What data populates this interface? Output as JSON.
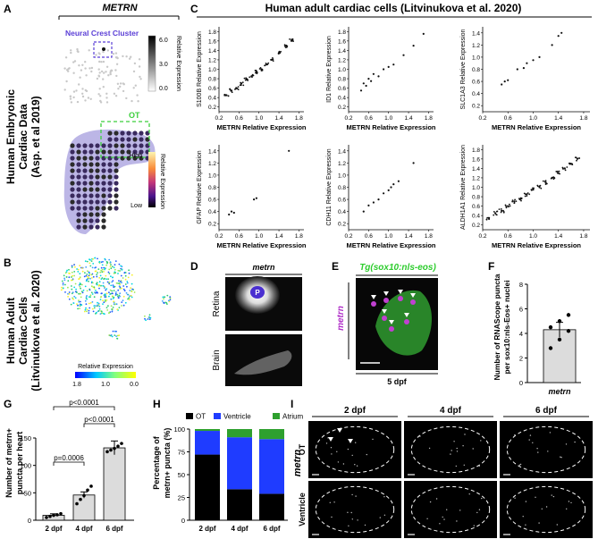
{
  "panel_labels": [
    "A",
    "B",
    "C",
    "D",
    "E",
    "F",
    "G",
    "H",
    "I"
  ],
  "A": {
    "gene": "METRN",
    "side_label_lines": [
      "Human Embryonic",
      "Cardiac Data",
      "(Asp. et al 2019)"
    ],
    "cluster_label": "Neural Crest Cluster",
    "colorbar1": {
      "ticks": [
        "6.0",
        "3.0",
        "0.0"
      ],
      "label": "Relative Expression"
    },
    "ot_label": "OT",
    "colorbar2": {
      "high": "High",
      "low": "Low",
      "label": "Relative Expression"
    },
    "colors": {
      "cluster_box": "#5b3fd6",
      "ot_box": "#3ccf3c"
    }
  },
  "B": {
    "side_label_lines": [
      "Human Adult",
      "Cardiac Cells",
      "(Litvinukova et al. 2020)"
    ],
    "legend_title": "Relative Expression",
    "legend_ticks": [
      "1.8",
      "1.0",
      "0.0"
    ]
  },
  "C": {
    "title": "Human adult cardiac cells (Litvinukova et al. 2020)",
    "xlabel": "METRN Relative Expression"
  },
  "chart_data": [
    {
      "type": "scatter",
      "ylabel": "S100B Relative Expression",
      "xticks": [
        "0.2",
        "0.6",
        "1.0",
        "1.4",
        "1.8"
      ],
      "yticks": [
        "0.2",
        "0.4",
        "0.6",
        "0.8",
        "1.0",
        "1.2",
        "1.4",
        "1.6",
        "1.8"
      ],
      "x": [
        0.35,
        0.45,
        0.55,
        0.65,
        0.75,
        0.85,
        0.95,
        1.05,
        1.15,
        1.25,
        1.4,
        1.55,
        1.65
      ],
      "y": [
        0.45,
        0.55,
        0.6,
        0.7,
        0.8,
        0.85,
        0.95,
        1.0,
        1.1,
        1.2,
        1.35,
        1.5,
        1.6
      ]
    },
    {
      "type": "scatter",
      "ylabel": "ID1 Relative Expression",
      "xticks": [
        "0.2",
        "0.6",
        "1.0",
        "1.4",
        "1.8"
      ],
      "yticks": [
        "0.2",
        "0.4",
        "0.6",
        "0.8",
        "1.0",
        "1.2",
        "1.4",
        "1.6",
        "1.8"
      ],
      "x": [
        0.45,
        0.5,
        0.55,
        0.6,
        0.65,
        0.7,
        0.8,
        0.9,
        1.0,
        1.1,
        1.3,
        1.5,
        1.7
      ],
      "y": [
        0.55,
        0.7,
        0.65,
        0.8,
        0.75,
        0.9,
        0.85,
        1.0,
        1.05,
        1.1,
        1.3,
        1.5,
        1.75
      ]
    },
    {
      "type": "scatter",
      "ylabel": "SLC1A3 Relative Expression",
      "xticks": [
        "0.2",
        "0.6",
        "1.0",
        "1.4",
        "1.8"
      ],
      "yticks": [
        "0.2",
        "0.4",
        "0.6",
        "0.8",
        "1.0",
        "1.2",
        "1.4"
      ],
      "x": [
        0.5,
        0.55,
        0.6,
        0.75,
        0.85,
        0.9,
        1.0,
        1.1,
        1.3,
        1.4,
        1.45
      ],
      "y": [
        0.55,
        0.6,
        0.62,
        0.8,
        0.82,
        0.9,
        0.95,
        1.0,
        1.2,
        1.35,
        1.4
      ]
    },
    {
      "type": "scatter",
      "ylabel": "GFAP Relative Expression",
      "xticks": [
        "0.2",
        "0.6",
        "1.0",
        "1.4",
        "1.8"
      ],
      "yticks": [
        "0.2",
        "0.4",
        "0.6",
        "0.8",
        "1.0",
        "1.2",
        "1.4"
      ],
      "x": [
        0.4,
        0.45,
        0.5,
        0.9,
        0.95,
        1.6
      ],
      "y": [
        0.35,
        0.4,
        0.38,
        0.6,
        0.62,
        1.4
      ]
    },
    {
      "type": "scatter",
      "ylabel": "CDH11 Relative Expression",
      "xticks": [
        "0.2",
        "0.6",
        "1.0",
        "1.4",
        "1.8"
      ],
      "yticks": [
        "0.2",
        "0.4",
        "0.6",
        "0.8",
        "1.0",
        "1.2",
        "1.4"
      ],
      "x": [
        0.5,
        0.6,
        0.7,
        0.8,
        0.9,
        1.0,
        1.05,
        1.1,
        1.2,
        1.5
      ],
      "y": [
        0.4,
        0.5,
        0.55,
        0.6,
        0.7,
        0.75,
        0.8,
        0.85,
        0.9,
        1.2
      ]
    },
    {
      "type": "scatter",
      "ylabel": "ALDH1A1 Relative Expression",
      "xticks": [
        "0.2",
        "0.6",
        "1.0",
        "1.4",
        "1.8"
      ],
      "yticks": [
        "0.2",
        "0.4",
        "0.6",
        "0.8",
        "1.0",
        "1.2",
        "1.4",
        "1.6",
        "1.8"
      ],
      "x": [
        0.3,
        0.4,
        0.5,
        0.6,
        0.7,
        0.8,
        0.9,
        1.0,
        1.1,
        1.2,
        1.3,
        1.4,
        1.5,
        1.6,
        1.7
      ],
      "y": [
        0.35,
        0.45,
        0.5,
        0.6,
        0.7,
        0.75,
        0.85,
        0.95,
        1.0,
        1.1,
        1.2,
        1.3,
        1.4,
        1.5,
        1.6
      ]
    },
    {
      "type": "bar",
      "ylabel_lines": [
        "Number of RNAScope puncta",
        "per sox10:nls-Eos+ nuclei"
      ],
      "categories": [
        "metrn"
      ],
      "values": [
        4.3
      ],
      "points": [
        2.8,
        3.5,
        4.2,
        4.5,
        5.0,
        5.5
      ],
      "yticks": [
        "0",
        "2",
        "4",
        "6",
        "8"
      ],
      "ylim": [
        0,
        8
      ]
    },
    {
      "type": "bar",
      "ylabel_lines": [
        "Number of metrn+",
        "puncta per heart"
      ],
      "categories": [
        "2 dpf",
        "4 dpf",
        "6 dpf"
      ],
      "values": [
        9,
        46,
        132
      ],
      "points": [
        [
          5,
          7,
          9,
          10,
          12
        ],
        [
          30,
          38,
          45,
          55,
          62
        ],
        [
          125,
          128,
          131,
          135,
          140
        ]
      ],
      "yticks": [
        "0",
        "50",
        "100",
        "150"
      ],
      "ylim": [
        0,
        150
      ],
      "annotations": [
        "p<0.0001",
        "p<0.0001",
        "p=0.0006"
      ]
    },
    {
      "type": "bar",
      "stacked": true,
      "ylabel_lines": [
        "Percentage of",
        "metrn+ puncta (%)"
      ],
      "categories": [
        "2 dpf",
        "4 dpf",
        "6 dpf"
      ],
      "series": [
        {
          "name": "OT",
          "values": [
            72,
            34,
            29
          ]
        },
        {
          "name": "Ventricle",
          "values": [
            26,
            57,
            60
          ]
        },
        {
          "name": "Atrium",
          "values": [
            2,
            9,
            11
          ]
        }
      ],
      "yticks": [
        "0",
        "25",
        "50",
        "75",
        "100"
      ],
      "ylim": [
        0,
        100
      ]
    }
  ],
  "D": {
    "title": "metrn",
    "row_labels": [
      "Retina",
      "Brain"
    ],
    "retina_mark": "P"
  },
  "E": {
    "title": "Tg(sox10:nls-eos)",
    "side_label": "metrn",
    "stage": "5 dpf"
  },
  "F": {
    "xlabel": "metrn"
  },
  "I": {
    "columns": [
      "2 dpf",
      "4 dpf",
      "6 dpf"
    ],
    "rows": [
      "OT",
      "Ventricle"
    ],
    "side_label": "metrn"
  },
  "colors": {
    "ot": "#000000",
    "ventricle": "#1f3cff",
    "atrium": "#2ea02e",
    "bar_gray": "#dcdcdc",
    "green_text": "#2ecc2e",
    "purple": "#b030c8"
  }
}
